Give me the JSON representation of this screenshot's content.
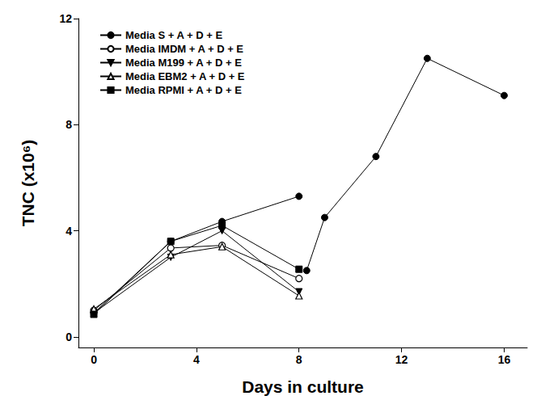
{
  "chart_data": {
    "type": "line",
    "x_label": "Days in culture",
    "y_label": "TNC (x10⁶)",
    "xlim": [
      -0.6,
      16.9
    ],
    "xticks": [
      0,
      4,
      8,
      12,
      16
    ],
    "ylim": [
      -0.4,
      12
    ],
    "yticks": [
      0,
      4,
      8,
      12
    ],
    "grid": false,
    "legend": "upper left",
    "series": [
      {
        "name": "Media S + A + D + E",
        "color": "#000000",
        "marker": "circle",
        "x": [
          0,
          3,
          5,
          8,
          8,
          8.3,
          9,
          11,
          13,
          16
        ],
        "values": [
          0.9,
          3.6,
          4.35,
          5.3,
          null,
          2.5,
          4.5,
          6.8,
          10.5,
          9.1
        ]
      },
      {
        "name": "Media IMDM + A + D + E",
        "color": "#000000",
        "marker": "open-circle",
        "x": [
          0,
          3,
          5,
          8
        ],
        "values": [
          1.0,
          3.35,
          3.45,
          2.2
        ]
      },
      {
        "name": "Media M199 + A + D + E",
        "color": "#000000",
        "marker": "triangle-down",
        "x": [
          0,
          3,
          5,
          8
        ],
        "values": [
          0.9,
          3.0,
          4.0,
          1.7
        ]
      },
      {
        "name": "Media EBM2 + A + D + E",
        "color": "#000000",
        "marker": "open-triangle",
        "x": [
          0,
          3,
          5,
          8
        ],
        "values": [
          1.05,
          3.1,
          3.4,
          1.55
        ]
      },
      {
        "name": "Media RPMI + A + D + E",
        "color": "#000000",
        "marker": "square",
        "x": [
          0,
          3,
          5,
          8
        ],
        "values": [
          0.85,
          3.6,
          4.2,
          2.55
        ]
      }
    ]
  }
}
